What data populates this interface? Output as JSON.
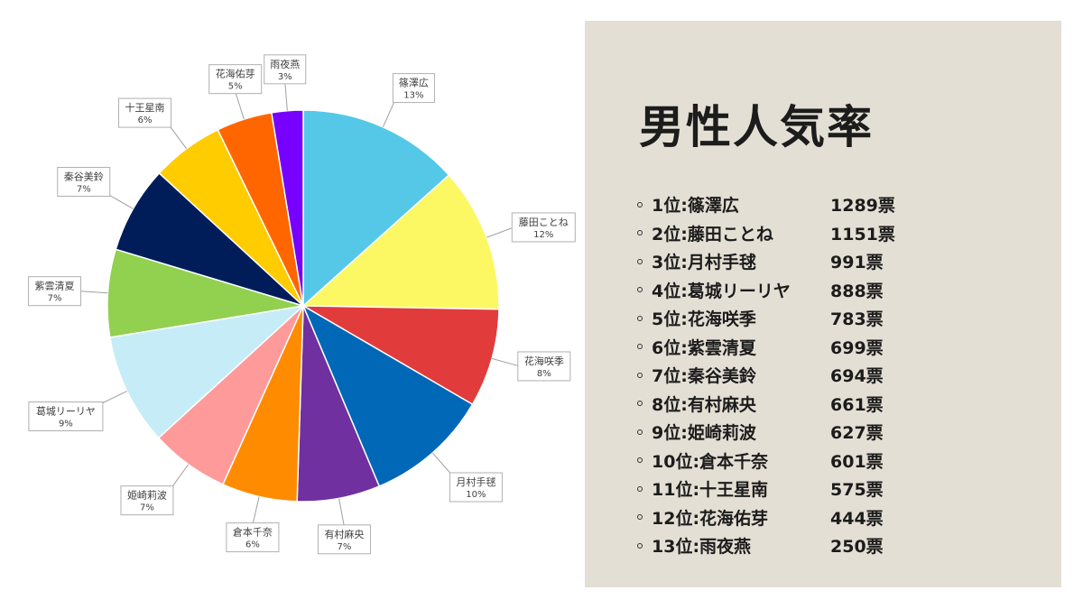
{
  "chart_data": {
    "type": "pie",
    "slices": [
      {
        "name": "篠澤広",
        "label": "13%",
        "value": 1289,
        "color": "#55c8e8"
      },
      {
        "name": "藤田ことね",
        "label": "12%",
        "value": 1151,
        "color": "#fbf864"
      },
      {
        "name": "花海咲季",
        "label": "8%",
        "value": 783,
        "color": "#e23b3b"
      },
      {
        "name": "月村手毬",
        "label": "10%",
        "value": 991,
        "color": "#0068b7"
      },
      {
        "name": "有村麻央",
        "label": "7%",
        "value": 661,
        "color": "#7030a0"
      },
      {
        "name": "倉本千奈",
        "label": "6%",
        "value": 601,
        "color": "#ff8c00"
      },
      {
        "name": "姫崎莉波",
        "label": "7%",
        "value": 627,
        "color": "#ff9a9a"
      },
      {
        "name": "葛城リーリヤ",
        "label": "9%",
        "value": 888,
        "color": "#c6ecf8"
      },
      {
        "name": "紫雲清夏",
        "label": "7%",
        "value": 699,
        "color": "#92d050"
      },
      {
        "name": "秦谷美鈴",
        "label": "7%",
        "value": 694,
        "color": "#001d5a"
      },
      {
        "name": "十王星南",
        "label": "6%",
        "value": 575,
        "color": "#ffcc00"
      },
      {
        "name": "花海佑芽",
        "label": "5%",
        "value": 444,
        "color": "#ff6600"
      },
      {
        "name": "雨夜燕",
        "label": "3%",
        "value": 250,
        "color": "#7700ff"
      }
    ]
  },
  "panel": {
    "title": "男性人気率",
    "rankings": [
      {
        "rank": "1位:篠澤広",
        "votes": "1289票"
      },
      {
        "rank": "2位:藤田ことね",
        "votes": "1151票"
      },
      {
        "rank": "3位:月村手毬",
        "votes": "991票"
      },
      {
        "rank": "4位:葛城リーリヤ",
        "votes": "888票"
      },
      {
        "rank": "5位:花海咲季",
        "votes": "783票"
      },
      {
        "rank": "6位:紫雲清夏",
        "votes": "699票"
      },
      {
        "rank": "7位:秦谷美鈴",
        "votes": "694票"
      },
      {
        "rank": "8位:有村麻央",
        "votes": "661票"
      },
      {
        "rank": "9位:姫崎莉波",
        "votes": "627票"
      },
      {
        "rank": "10位:倉本千奈",
        "votes": "601票"
      },
      {
        "rank": "11位:十王星南",
        "votes": "575票"
      },
      {
        "rank": "12位:花海佑芽",
        "votes": "444票"
      },
      {
        "rank": "13位:雨夜燕",
        "votes": "250票"
      }
    ]
  }
}
